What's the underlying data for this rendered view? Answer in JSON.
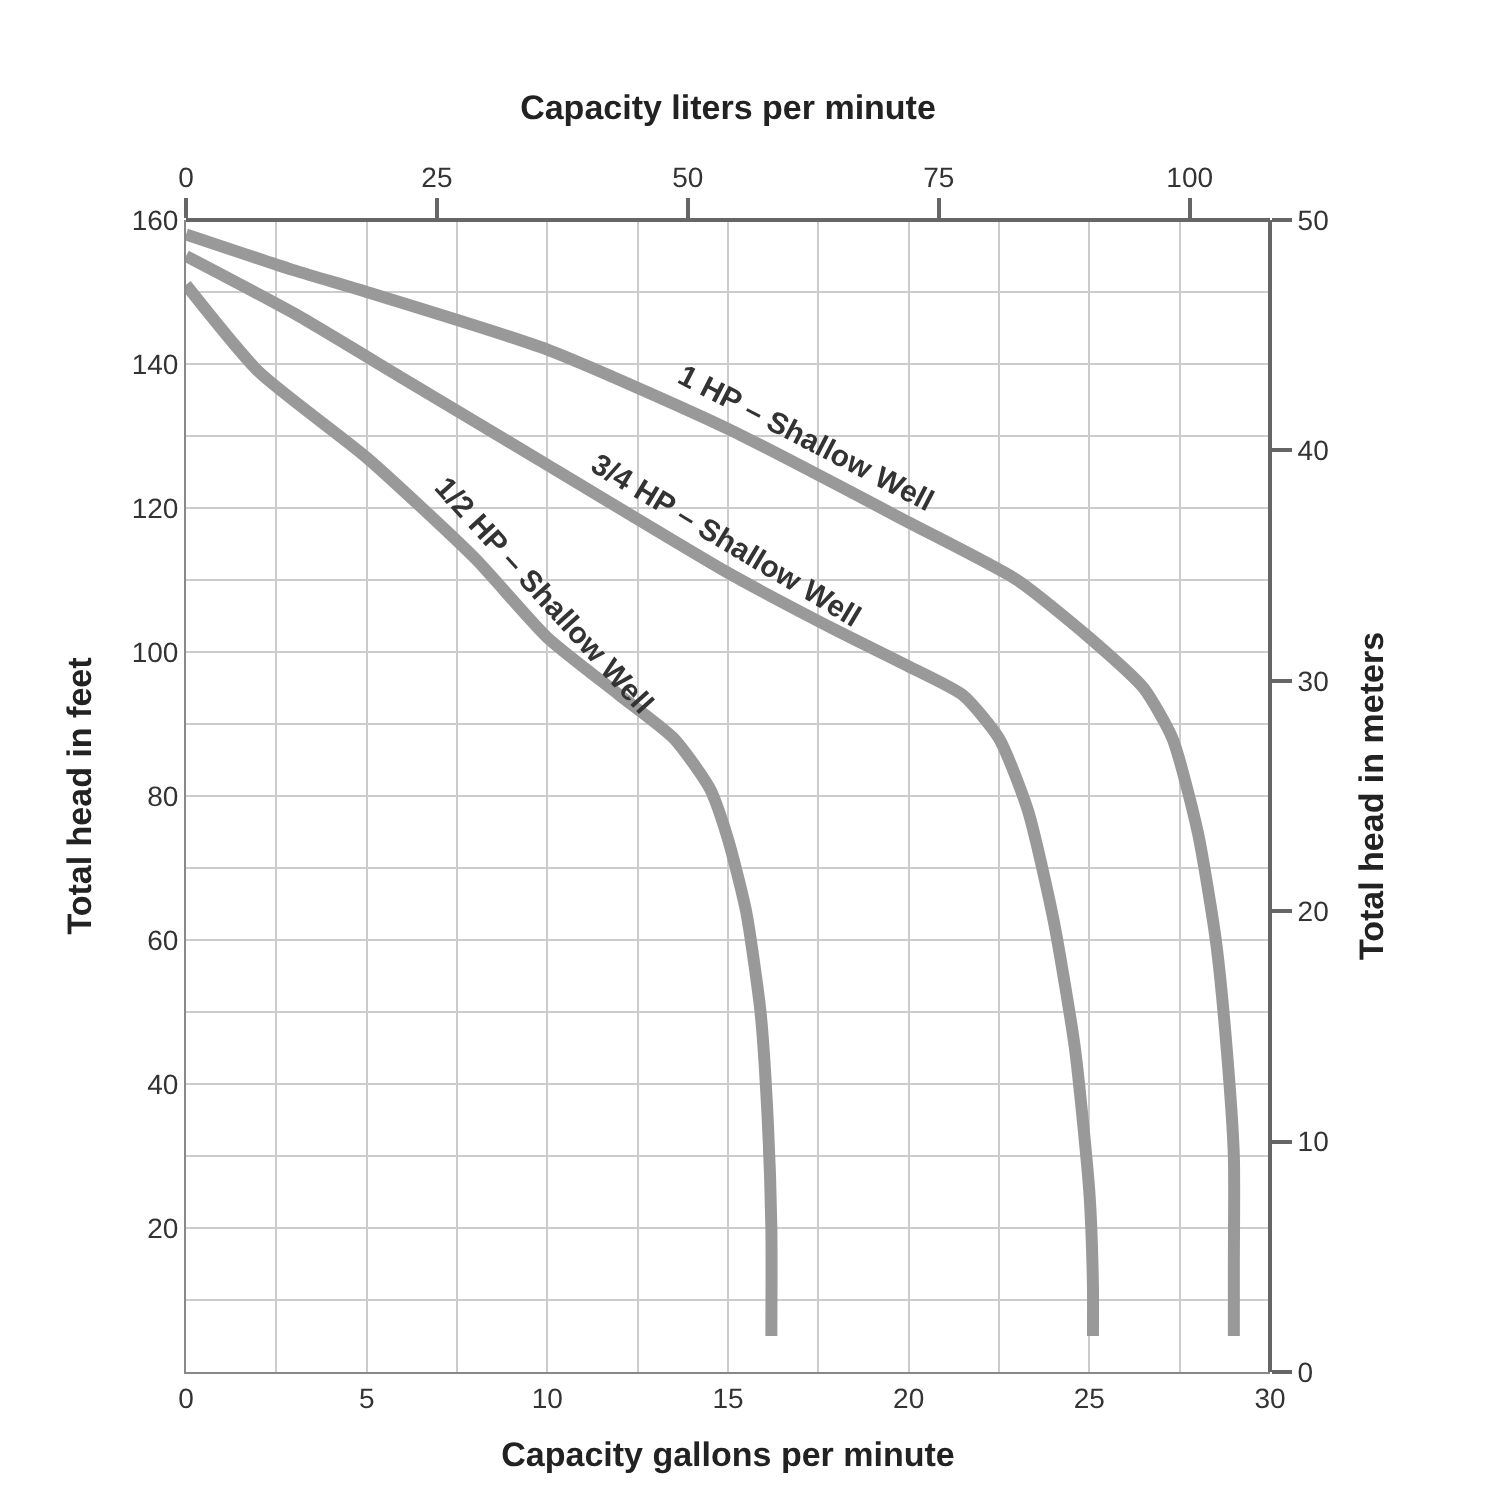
{
  "chart_data": {
    "type": "line",
    "xlabel": "Capacity gallons per minute",
    "ylabel": "Total head in feet",
    "y2label": "Total head in meters",
    "x2label": "Capacity liters per minute",
    "xlim": [
      0,
      30
    ],
    "xticks": [
      0,
      {
        "value": 2.5,
        "label": null
      },
      5,
      {
        "value": 7.5,
        "label": null
      },
      10,
      {
        "value": 12.5,
        "label": null
      },
      15,
      {
        "value": 17.5,
        "label": null
      },
      20,
      {
        "value": 22.5,
        "label": null
      },
      25,
      {
        "value": 27.5,
        "label": null
      },
      30
    ],
    "ylim": [
      0,
      160
    ],
    "yticks": [
      {
        "value": 0,
        "label": null
      },
      {
        "value": 10,
        "label": null
      },
      20,
      {
        "value": 30,
        "label": null
      },
      40,
      {
        "value": 50,
        "label": null
      },
      60,
      {
        "value": 70,
        "label": null
      },
      80,
      {
        "value": 90,
        "label": null
      },
      100,
      {
        "value": 110,
        "label": null
      },
      120,
      {
        "value": 130,
        "label": null
      },
      140,
      {
        "value": 150,
        "label": null
      },
      160
    ],
    "x2lim": [
      0,
      108
    ],
    "x2ticks": [
      0,
      25,
      50,
      75,
      100
    ],
    "y2lim": [
      0,
      50
    ],
    "y2ticks": [
      0,
      10,
      20,
      30,
      40,
      50
    ],
    "grid": true,
    "legend": false,
    "marker": "none",
    "line_style": "solid",
    "series": [
      {
        "name": "1/2 HP – Shallow Well",
        "color": "#999999",
        "x": [
          0,
          2,
          5,
          8,
          10,
          12,
          13.5,
          14.5,
          15,
          15.5,
          15.9,
          16.1,
          16.2,
          16.2
        ],
        "values": [
          151,
          139,
          127,
          113,
          102,
          94,
          88,
          81,
          74,
          64,
          50,
          35,
          20,
          5
        ]
      },
      {
        "name": "3/4 HP – Shallow Well",
        "color": "#999999",
        "x": [
          0,
          3,
          6,
          10,
          15,
          18,
          20,
          21.5,
          22.5,
          23.3,
          24,
          24.6,
          25,
          25.1,
          25.1
        ],
        "values": [
          155,
          147,
          138,
          126,
          111,
          103,
          98,
          94,
          88,
          78,
          63,
          45,
          25,
          12,
          5
        ]
      },
      {
        "name": "1 HP – Shallow Well",
        "color": "#999999",
        "x": [
          0,
          3,
          5,
          10,
          15,
          20,
          23,
          25,
          26.5,
          27.3,
          28,
          28.5,
          28.8,
          29,
          29,
          29
        ],
        "values": [
          158,
          153,
          150,
          142,
          131,
          118,
          110,
          102,
          95,
          88,
          75,
          60,
          45,
          30,
          15,
          5
        ]
      }
    ]
  }
}
